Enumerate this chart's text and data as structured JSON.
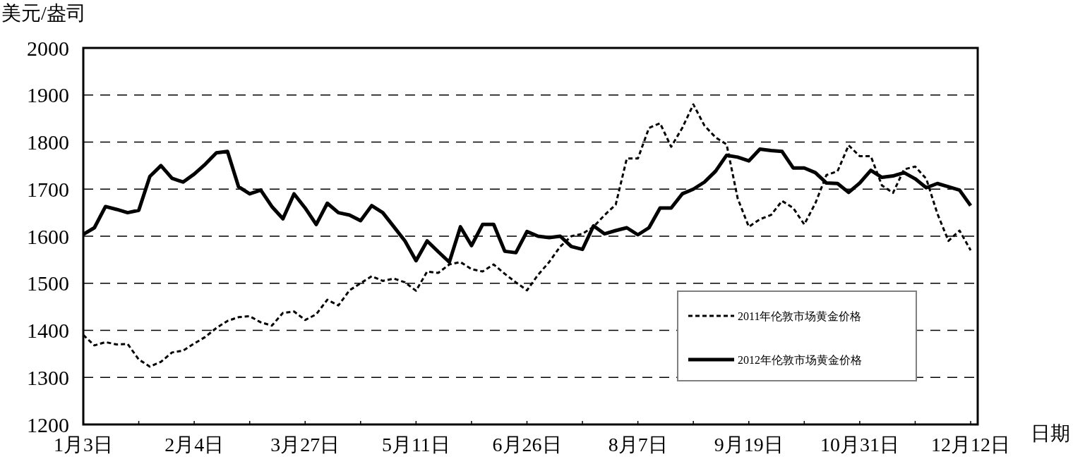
{
  "chart_data": {
    "type": "line",
    "ylabel": "美元/盎司",
    "xlabel": "日期",
    "categories": [
      "1月3日",
      null,
      null,
      null,
      null,
      null,
      null,
      null,
      null,
      null,
      "2月4日",
      null,
      null,
      null,
      null,
      null,
      null,
      null,
      null,
      null,
      "3月27日",
      null,
      null,
      null,
      null,
      null,
      null,
      null,
      null,
      null,
      "5月11日",
      null,
      null,
      null,
      null,
      null,
      null,
      null,
      null,
      null,
      "6月26日",
      null,
      null,
      null,
      null,
      null,
      null,
      null,
      null,
      null,
      "8月7日",
      null,
      null,
      null,
      null,
      null,
      null,
      null,
      null,
      null,
      "9月19日",
      null,
      null,
      null,
      null,
      null,
      null,
      null,
      null,
      null,
      "10月31日",
      null,
      null,
      null,
      null,
      null,
      null,
      null,
      null,
      null,
      "12月12日"
    ],
    "ylim": [
      1200,
      2000
    ],
    "yticks": [
      1200,
      1300,
      1400,
      1500,
      1600,
      1700,
      1800,
      1900,
      2000
    ],
    "grid": "y",
    "legend": "bottom right",
    "series": [
      {
        "name": "2011年伦敦市场黄金价格",
        "color": "#000000",
        "line_style": "dashed",
        "values": [
          1390,
          1368,
          1375,
          1370,
          1371,
          1338,
          1323,
          1333,
          1353,
          1357,
          1372,
          1386,
          1405,
          1420,
          1428,
          1430,
          1417,
          1410,
          1437,
          1440,
          1422,
          1434,
          1465,
          1453,
          1485,
          1500,
          1515,
          1505,
          1510,
          1502,
          1484,
          1525,
          1522,
          1540,
          1545,
          1530,
          1525,
          1540,
          1520,
          1502,
          1485,
          1518,
          1545,
          1578,
          1600,
          1605,
          1620,
          1645,
          1667,
          1765,
          1765,
          1830,
          1840,
          1790,
          1830,
          1880,
          1835,
          1810,
          1795,
          1680,
          1620,
          1636,
          1645,
          1675,
          1660,
          1625,
          1670,
          1730,
          1738,
          1793,
          1770,
          1770,
          1708,
          1692,
          1742,
          1748,
          1722,
          1648,
          1590,
          1612,
          1570
        ]
      },
      {
        "name": "2012年伦敦市场黄金价格",
        "color": "#000000",
        "line_style": "solid",
        "values": [
          1604,
          1618,
          1663,
          1657,
          1650,
          1655,
          1727,
          1750,
          1723,
          1715,
          1732,
          1753,
          1777,
          1780,
          1705,
          1690,
          1698,
          1663,
          1637,
          1690,
          1660,
          1625,
          1670,
          1650,
          1645,
          1633,
          1665,
          1650,
          1620,
          1590,
          1548,
          1590,
          1567,
          1545,
          1620,
          1580,
          1625,
          1625,
          1568,
          1565,
          1610,
          1600,
          1597,
          1600,
          1578,
          1572,
          1622,
          1605,
          1612,
          1618,
          1603,
          1618,
          1660,
          1660,
          1690,
          1700,
          1715,
          1738,
          1772,
          1768,
          1760,
          1785,
          1782,
          1780,
          1745,
          1745,
          1735,
          1713,
          1712,
          1693,
          1713,
          1740,
          1725,
          1728,
          1735,
          1722,
          1703,
          1712,
          1705,
          1698,
          1665
        ]
      }
    ]
  }
}
